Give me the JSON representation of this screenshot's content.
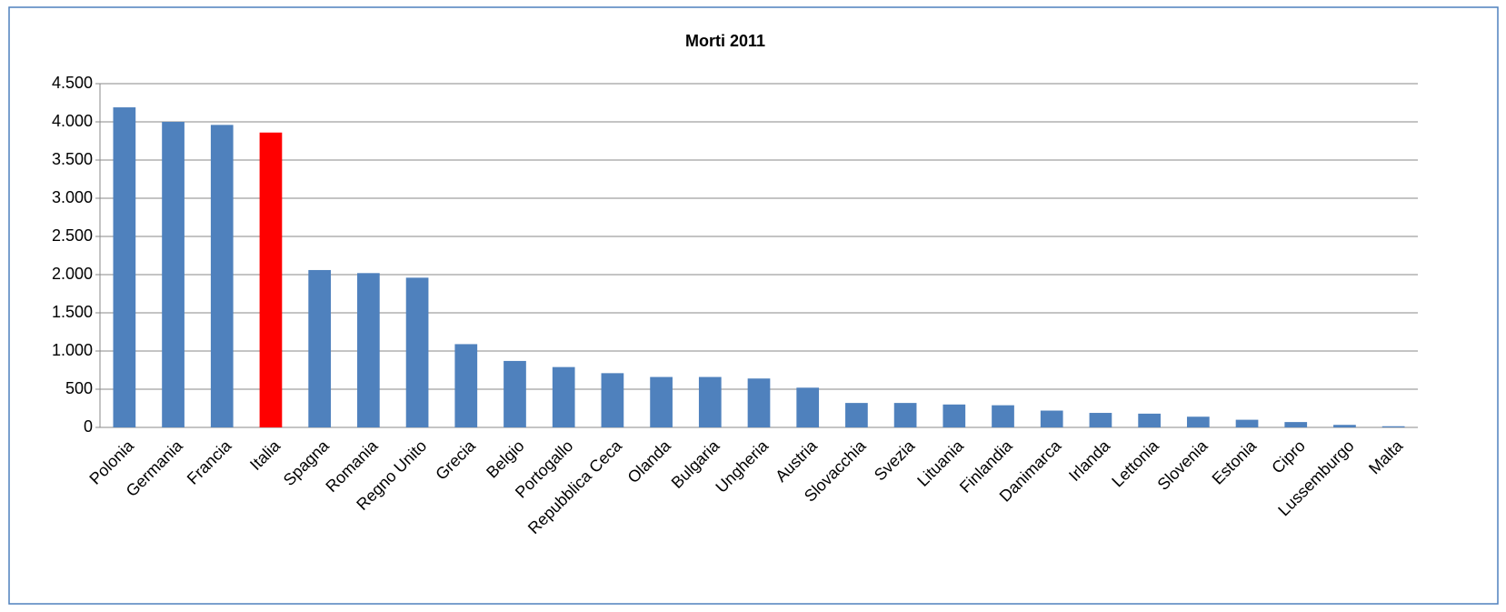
{
  "chart_data": {
    "type": "bar",
    "title": "Morti 2011",
    "categories": [
      "Polonia",
      "Germania",
      "Francia",
      "Italia",
      "Spagna",
      "Romania",
      "Regno Unito",
      "Grecia",
      "Belgio",
      "Portogallo",
      "Repubblica Ceca",
      "Olanda",
      "Bulgaria",
      "Ungheria",
      "Austria",
      "Slovacchia",
      "Svezia",
      "Lituania",
      "Finlandia",
      "Danimarca",
      "Irlanda",
      "Lettonia",
      "Slovenia",
      "Estonia",
      "Cipro",
      "Lussemburgo",
      "Malta"
    ],
    "values": [
      4190,
      4000,
      3960,
      3860,
      2060,
      2020,
      1960,
      1090,
      870,
      790,
      710,
      660,
      660,
      640,
      520,
      320,
      320,
      300,
      290,
      220,
      190,
      180,
      140,
      100,
      70,
      33,
      15
    ],
    "colors": [
      "#4f81bd",
      "#4f81bd",
      "#4f81bd",
      "#ff0000",
      "#4f81bd",
      "#4f81bd",
      "#4f81bd",
      "#4f81bd",
      "#4f81bd",
      "#4f81bd",
      "#4f81bd",
      "#4f81bd",
      "#4f81bd",
      "#4f81bd",
      "#4f81bd",
      "#4f81bd",
      "#4f81bd",
      "#4f81bd",
      "#4f81bd",
      "#4f81bd",
      "#4f81bd",
      "#4f81bd",
      "#4f81bd",
      "#4f81bd",
      "#4f81bd",
      "#4f81bd",
      "#4f81bd"
    ],
    "ylim": [
      0,
      4500
    ],
    "yticks": [
      0,
      500,
      {
        "value": 1000,
        "label": "1.000"
      },
      {
        "value": 1500,
        "label": "1.500"
      },
      {
        "value": 2000,
        "label": "2.000"
      },
      {
        "value": 2500,
        "label": "2.500"
      },
      {
        "value": 3000,
        "label": "3.000"
      },
      {
        "value": 3500,
        "label": "3.500"
      },
      {
        "value": 4000,
        "label": "4.000"
      },
      {
        "value": 4500,
        "label": "4.500"
      }
    ],
    "grid": true
  }
}
